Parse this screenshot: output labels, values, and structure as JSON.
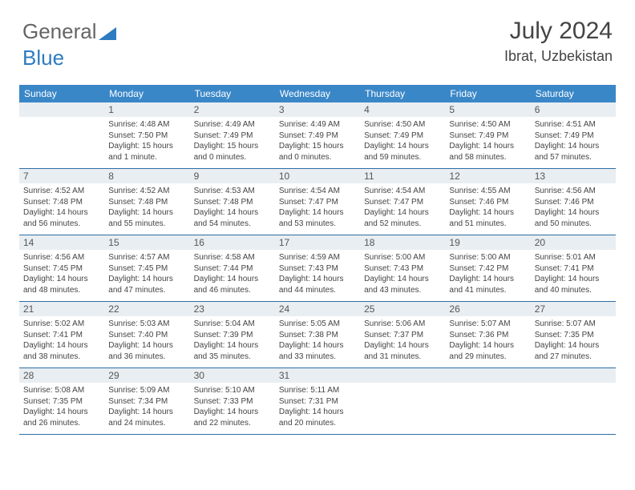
{
  "brand": {
    "part1": "General",
    "part2": "Blue"
  },
  "header": {
    "month": "July 2024",
    "location": "Ibrat, Uzbekistan"
  },
  "colors": {
    "header_bg": "#3a87c8",
    "daynum_bg": "#e9eef2",
    "divider": "#2d6ea5",
    "logo_blue": "#2d7bc0"
  },
  "dayNames": [
    "Sunday",
    "Monday",
    "Tuesday",
    "Wednesday",
    "Thursday",
    "Friday",
    "Saturday"
  ],
  "weeks": [
    [
      null,
      {
        "n": "1",
        "sr": "4:48 AM",
        "ss": "7:50 PM",
        "dl": "15 hours and 1 minute."
      },
      {
        "n": "2",
        "sr": "4:49 AM",
        "ss": "7:49 PM",
        "dl": "15 hours and 0 minutes."
      },
      {
        "n": "3",
        "sr": "4:49 AM",
        "ss": "7:49 PM",
        "dl": "15 hours and 0 minutes."
      },
      {
        "n": "4",
        "sr": "4:50 AM",
        "ss": "7:49 PM",
        "dl": "14 hours and 59 minutes."
      },
      {
        "n": "5",
        "sr": "4:50 AM",
        "ss": "7:49 PM",
        "dl": "14 hours and 58 minutes."
      },
      {
        "n": "6",
        "sr": "4:51 AM",
        "ss": "7:49 PM",
        "dl": "14 hours and 57 minutes."
      }
    ],
    [
      {
        "n": "7",
        "sr": "4:52 AM",
        "ss": "7:48 PM",
        "dl": "14 hours and 56 minutes."
      },
      {
        "n": "8",
        "sr": "4:52 AM",
        "ss": "7:48 PM",
        "dl": "14 hours and 55 minutes."
      },
      {
        "n": "9",
        "sr": "4:53 AM",
        "ss": "7:48 PM",
        "dl": "14 hours and 54 minutes."
      },
      {
        "n": "10",
        "sr": "4:54 AM",
        "ss": "7:47 PM",
        "dl": "14 hours and 53 minutes."
      },
      {
        "n": "11",
        "sr": "4:54 AM",
        "ss": "7:47 PM",
        "dl": "14 hours and 52 minutes."
      },
      {
        "n": "12",
        "sr": "4:55 AM",
        "ss": "7:46 PM",
        "dl": "14 hours and 51 minutes."
      },
      {
        "n": "13",
        "sr": "4:56 AM",
        "ss": "7:46 PM",
        "dl": "14 hours and 50 minutes."
      }
    ],
    [
      {
        "n": "14",
        "sr": "4:56 AM",
        "ss": "7:45 PM",
        "dl": "14 hours and 48 minutes."
      },
      {
        "n": "15",
        "sr": "4:57 AM",
        "ss": "7:45 PM",
        "dl": "14 hours and 47 minutes."
      },
      {
        "n": "16",
        "sr": "4:58 AM",
        "ss": "7:44 PM",
        "dl": "14 hours and 46 minutes."
      },
      {
        "n": "17",
        "sr": "4:59 AM",
        "ss": "7:43 PM",
        "dl": "14 hours and 44 minutes."
      },
      {
        "n": "18",
        "sr": "5:00 AM",
        "ss": "7:43 PM",
        "dl": "14 hours and 43 minutes."
      },
      {
        "n": "19",
        "sr": "5:00 AM",
        "ss": "7:42 PM",
        "dl": "14 hours and 41 minutes."
      },
      {
        "n": "20",
        "sr": "5:01 AM",
        "ss": "7:41 PM",
        "dl": "14 hours and 40 minutes."
      }
    ],
    [
      {
        "n": "21",
        "sr": "5:02 AM",
        "ss": "7:41 PM",
        "dl": "14 hours and 38 minutes."
      },
      {
        "n": "22",
        "sr": "5:03 AM",
        "ss": "7:40 PM",
        "dl": "14 hours and 36 minutes."
      },
      {
        "n": "23",
        "sr": "5:04 AM",
        "ss": "7:39 PM",
        "dl": "14 hours and 35 minutes."
      },
      {
        "n": "24",
        "sr": "5:05 AM",
        "ss": "7:38 PM",
        "dl": "14 hours and 33 minutes."
      },
      {
        "n": "25",
        "sr": "5:06 AM",
        "ss": "7:37 PM",
        "dl": "14 hours and 31 minutes."
      },
      {
        "n": "26",
        "sr": "5:07 AM",
        "ss": "7:36 PM",
        "dl": "14 hours and 29 minutes."
      },
      {
        "n": "27",
        "sr": "5:07 AM",
        "ss": "7:35 PM",
        "dl": "14 hours and 27 minutes."
      }
    ],
    [
      {
        "n": "28",
        "sr": "5:08 AM",
        "ss": "7:35 PM",
        "dl": "14 hours and 26 minutes."
      },
      {
        "n": "29",
        "sr": "5:09 AM",
        "ss": "7:34 PM",
        "dl": "14 hours and 24 minutes."
      },
      {
        "n": "30",
        "sr": "5:10 AM",
        "ss": "7:33 PM",
        "dl": "14 hours and 22 minutes."
      },
      {
        "n": "31",
        "sr": "5:11 AM",
        "ss": "7:31 PM",
        "dl": "14 hours and 20 minutes."
      },
      null,
      null,
      null
    ]
  ],
  "labels": {
    "sunrise": "Sunrise:",
    "sunset": "Sunset:",
    "daylight": "Daylight:"
  }
}
